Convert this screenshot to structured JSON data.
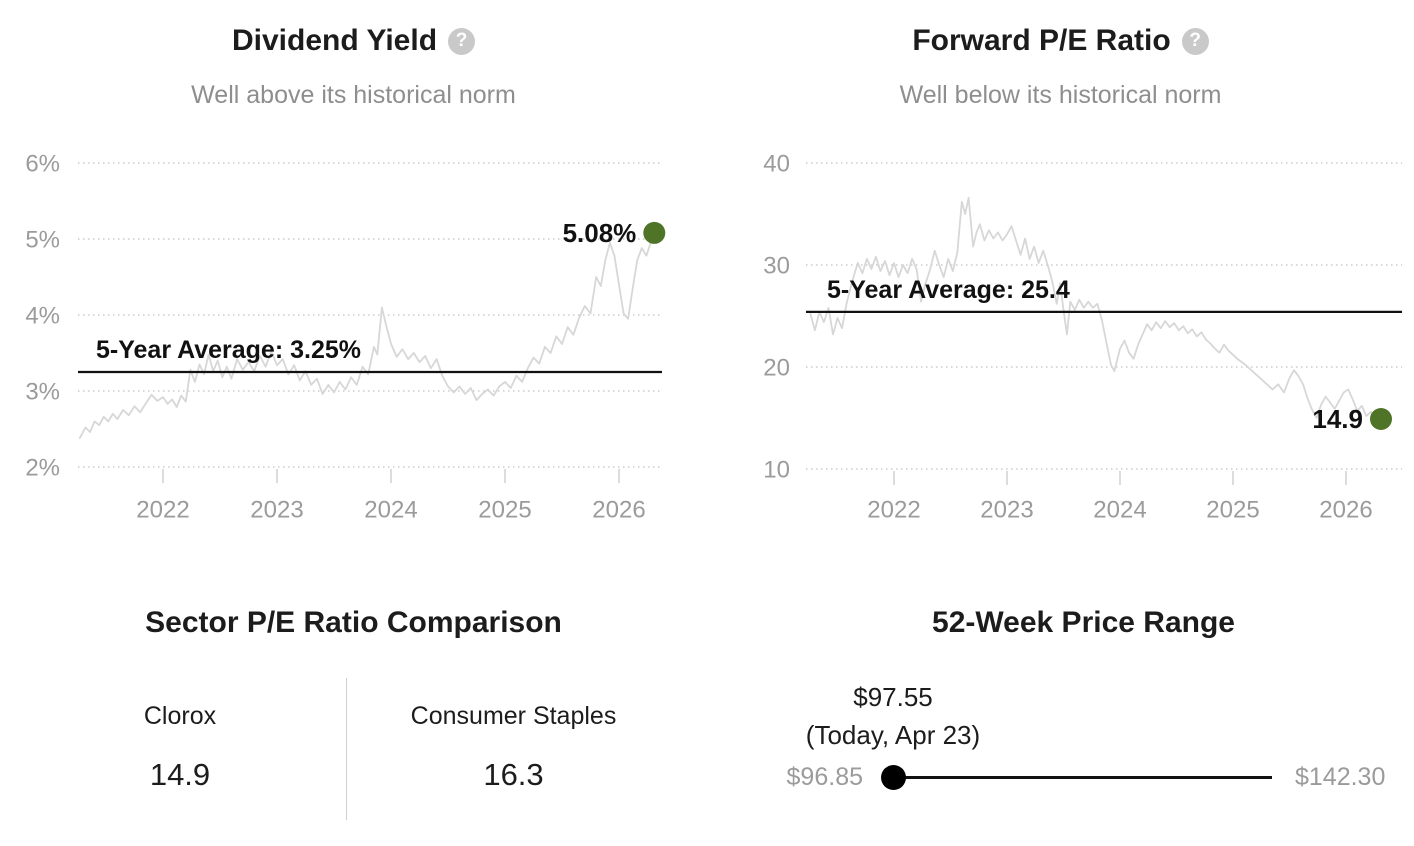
{
  "colors": {
    "accent_green": "#4f7428",
    "line_gray": "#d7d7d7",
    "grid_gray": "#cccccc",
    "text_gray": "#9b9b9b"
  },
  "panels": {
    "dividend_yield": {
      "title": "Dividend Yield",
      "subtitle": "Well above its historical norm",
      "help_icon": "?"
    },
    "forward_pe": {
      "title": "Forward P/E Ratio",
      "subtitle": "Well below its historical norm",
      "help_icon": "?"
    },
    "sector_pe": {
      "title": "Sector P/E Ratio Comparison",
      "columns": [
        {
          "label": "Clorox",
          "value": "14.9"
        },
        {
          "label": "Consumer Staples",
          "value": "16.3"
        }
      ]
    },
    "price_range": {
      "title": "52-Week Price Range",
      "current_price": "$97.55",
      "current_label": "(Today, Apr 23)",
      "low_label": "$96.85",
      "high_label": "$142.30",
      "low_value": 96.85,
      "high_value": 142.3,
      "current_value": 97.55
    }
  },
  "chart_data": [
    {
      "id": "dividend_yield",
      "type": "line",
      "title": "Dividend Yield",
      "subtitle": "Well above its historical norm",
      "ylim": [
        2,
        6
      ],
      "xlim": [
        2021.25,
        2026.35
      ],
      "grid": "dotted-horizontal",
      "y_ticks": [
        {
          "value": 6,
          "label": "6%"
        },
        {
          "value": 5,
          "label": "5%"
        },
        {
          "value": 4,
          "label": "4%"
        },
        {
          "value": 3,
          "label": "3%"
        },
        {
          "value": 2,
          "label": "2%"
        }
      ],
      "x_ticks": [
        {
          "value": 2022,
          "label": "2022"
        },
        {
          "value": 2023,
          "label": "2023"
        },
        {
          "value": 2024,
          "label": "2024"
        },
        {
          "value": 2025,
          "label": "2025"
        },
        {
          "value": 2026,
          "label": "2026"
        }
      ],
      "average": 3.25,
      "average_label": "5-Year Average: 3.25%",
      "last_value": 5.08,
      "last_label": "5.08%",
      "line_color": "#d7d7d7",
      "dot_color": "#4f7428",
      "series": [
        [
          2021.27,
          2.38
        ],
        [
          2021.32,
          2.52
        ],
        [
          2021.36,
          2.46
        ],
        [
          2021.4,
          2.6
        ],
        [
          2021.44,
          2.55
        ],
        [
          2021.48,
          2.66
        ],
        [
          2021.52,
          2.6
        ],
        [
          2021.56,
          2.7
        ],
        [
          2021.6,
          2.63
        ],
        [
          2021.65,
          2.75
        ],
        [
          2021.7,
          2.68
        ],
        [
          2021.75,
          2.8
        ],
        [
          2021.8,
          2.72
        ],
        [
          2021.85,
          2.84
        ],
        [
          2021.9,
          2.95
        ],
        [
          2021.95,
          2.87
        ],
        [
          2022.0,
          2.92
        ],
        [
          2022.04,
          2.83
        ],
        [
          2022.08,
          2.89
        ],
        [
          2022.12,
          2.79
        ],
        [
          2022.16,
          2.94
        ],
        [
          2022.2,
          2.86
        ],
        [
          2022.24,
          3.28
        ],
        [
          2022.28,
          3.12
        ],
        [
          2022.32,
          3.35
        ],
        [
          2022.36,
          3.22
        ],
        [
          2022.4,
          3.48
        ],
        [
          2022.44,
          3.26
        ],
        [
          2022.48,
          3.4
        ],
        [
          2022.52,
          3.18
        ],
        [
          2022.56,
          3.32
        ],
        [
          2022.6,
          3.16
        ],
        [
          2022.65,
          3.42
        ],
        [
          2022.7,
          3.28
        ],
        [
          2022.75,
          3.38
        ],
        [
          2022.8,
          3.26
        ],
        [
          2022.85,
          3.46
        ],
        [
          2022.9,
          3.32
        ],
        [
          2022.95,
          3.52
        ],
        [
          2023.0,
          3.34
        ],
        [
          2023.05,
          3.42
        ],
        [
          2023.1,
          3.22
        ],
        [
          2023.15,
          3.34
        ],
        [
          2023.2,
          3.14
        ],
        [
          2023.25,
          3.26
        ],
        [
          2023.3,
          3.08
        ],
        [
          2023.35,
          3.16
        ],
        [
          2023.4,
          2.96
        ],
        [
          2023.45,
          3.08
        ],
        [
          2023.5,
          2.98
        ],
        [
          2023.55,
          3.12
        ],
        [
          2023.6,
          3.02
        ],
        [
          2023.65,
          3.18
        ],
        [
          2023.7,
          3.08
        ],
        [
          2023.75,
          3.32
        ],
        [
          2023.8,
          3.22
        ],
        [
          2023.85,
          3.58
        ],
        [
          2023.88,
          3.48
        ],
        [
          2023.92,
          4.1
        ],
        [
          2023.96,
          3.85
        ],
        [
          2024.0,
          3.62
        ],
        [
          2024.05,
          3.45
        ],
        [
          2024.1,
          3.55
        ],
        [
          2024.15,
          3.42
        ],
        [
          2024.2,
          3.5
        ],
        [
          2024.25,
          3.38
        ],
        [
          2024.3,
          3.46
        ],
        [
          2024.35,
          3.3
        ],
        [
          2024.4,
          3.42
        ],
        [
          2024.45,
          3.2
        ],
        [
          2024.5,
          3.06
        ],
        [
          2024.55,
          2.98
        ],
        [
          2024.6,
          3.06
        ],
        [
          2024.65,
          2.96
        ],
        [
          2024.7,
          3.04
        ],
        [
          2024.75,
          2.88
        ],
        [
          2024.8,
          2.96
        ],
        [
          2024.85,
          3.02
        ],
        [
          2024.9,
          2.94
        ],
        [
          2024.95,
          3.06
        ],
        [
          2025.0,
          3.12
        ],
        [
          2025.05,
          3.04
        ],
        [
          2025.1,
          3.2
        ],
        [
          2025.15,
          3.12
        ],
        [
          2025.2,
          3.3
        ],
        [
          2025.25,
          3.44
        ],
        [
          2025.3,
          3.36
        ],
        [
          2025.35,
          3.58
        ],
        [
          2025.4,
          3.5
        ],
        [
          2025.45,
          3.72
        ],
        [
          2025.5,
          3.62
        ],
        [
          2025.55,
          3.84
        ],
        [
          2025.6,
          3.74
        ],
        [
          2025.65,
          3.96
        ],
        [
          2025.7,
          4.12
        ],
        [
          2025.75,
          4.02
        ],
        [
          2025.8,
          4.5
        ],
        [
          2025.84,
          4.38
        ],
        [
          2025.88,
          4.72
        ],
        [
          2025.92,
          4.95
        ],
        [
          2025.96,
          4.78
        ],
        [
          2026.0,
          4.4
        ],
        [
          2026.04,
          4.02
        ],
        [
          2026.08,
          3.95
        ],
        [
          2026.12,
          4.35
        ],
        [
          2026.16,
          4.72
        ],
        [
          2026.2,
          4.88
        ],
        [
          2026.24,
          4.78
        ],
        [
          2026.28,
          4.96
        ],
        [
          2026.31,
          5.08
        ]
      ]
    },
    {
      "id": "forward_pe",
      "type": "line",
      "title": "Forward P/E Ratio",
      "subtitle": "Well below its historical norm",
      "ylim": [
        10,
        40
      ],
      "xlim": [
        2021.25,
        2026.35
      ],
      "grid": "dotted-horizontal",
      "y_ticks": [
        {
          "value": 40,
          "label": "40"
        },
        {
          "value": 30,
          "label": "30"
        },
        {
          "value": 20,
          "label": "20"
        },
        {
          "value": 10,
          "label": "10"
        }
      ],
      "x_ticks": [
        {
          "value": 2022,
          "label": "2022"
        },
        {
          "value": 2023,
          "label": "2023"
        },
        {
          "value": 2024,
          "label": "2024"
        },
        {
          "value": 2025,
          "label": "2025"
        },
        {
          "value": 2026,
          "label": "2026"
        }
      ],
      "average": 25.4,
      "average_label": "5-Year Average: 25.4",
      "last_value": 14.9,
      "last_label": "14.9",
      "line_color": "#d7d7d7",
      "dot_color": "#4f7428",
      "series": [
        [
          2021.26,
          25.2
        ],
        [
          2021.3,
          23.6
        ],
        [
          2021.34,
          25.4
        ],
        [
          2021.38,
          24.4
        ],
        [
          2021.42,
          25.8
        ],
        [
          2021.46,
          23.2
        ],
        [
          2021.5,
          24.8
        ],
        [
          2021.54,
          23.8
        ],
        [
          2021.58,
          26.2
        ],
        [
          2021.63,
          28.4
        ],
        [
          2021.68,
          30.2
        ],
        [
          2021.72,
          29.2
        ],
        [
          2021.76,
          30.6
        ],
        [
          2021.8,
          29.6
        ],
        [
          2021.84,
          30.8
        ],
        [
          2021.88,
          29.4
        ],
        [
          2021.92,
          30.4
        ],
        [
          2021.96,
          29.0
        ],
        [
          2022.0,
          30.2
        ],
        [
          2022.04,
          28.8
        ],
        [
          2022.08,
          30.0
        ],
        [
          2022.12,
          29.2
        ],
        [
          2022.16,
          30.6
        ],
        [
          2022.2,
          29.6
        ],
        [
          2022.24,
          26.4
        ],
        [
          2022.28,
          28.2
        ],
        [
          2022.32,
          29.6
        ],
        [
          2022.36,
          31.4
        ],
        [
          2022.4,
          30.0
        ],
        [
          2022.44,
          28.8
        ],
        [
          2022.48,
          30.6
        ],
        [
          2022.52,
          29.4
        ],
        [
          2022.56,
          31.2
        ],
        [
          2022.6,
          36.2
        ],
        [
          2022.63,
          35.0
        ],
        [
          2022.66,
          36.6
        ],
        [
          2022.7,
          31.8
        ],
        [
          2022.73,
          33.2
        ],
        [
          2022.76,
          34.0
        ],
        [
          2022.8,
          32.4
        ],
        [
          2022.84,
          33.4
        ],
        [
          2022.88,
          32.6
        ],
        [
          2022.92,
          33.2
        ],
        [
          2022.96,
          32.4
        ],
        [
          2023.0,
          33.0
        ],
        [
          2023.04,
          33.8
        ],
        [
          2023.08,
          32.4
        ],
        [
          2023.12,
          31.0
        ],
        [
          2023.16,
          32.6
        ],
        [
          2023.2,
          30.6
        ],
        [
          2023.24,
          31.8
        ],
        [
          2023.28,
          30.2
        ],
        [
          2023.32,
          31.4
        ],
        [
          2023.36,
          30.0
        ],
        [
          2023.4,
          28.4
        ],
        [
          2023.44,
          26.2
        ],
        [
          2023.47,
          28.2
        ],
        [
          2023.5,
          25.6
        ],
        [
          2023.53,
          23.2
        ],
        [
          2023.56,
          26.4
        ],
        [
          2023.6,
          25.6
        ],
        [
          2023.64,
          26.6
        ],
        [
          2023.68,
          25.8
        ],
        [
          2023.72,
          26.4
        ],
        [
          2023.76,
          25.8
        ],
        [
          2023.8,
          26.2
        ],
        [
          2023.84,
          24.6
        ],
        [
          2023.88,
          22.4
        ],
        [
          2023.92,
          20.2
        ],
        [
          2023.95,
          19.6
        ],
        [
          2024.0,
          21.8
        ],
        [
          2024.04,
          22.6
        ],
        [
          2024.08,
          21.4
        ],
        [
          2024.12,
          20.8
        ],
        [
          2024.16,
          22.2
        ],
        [
          2024.2,
          23.2
        ],
        [
          2024.24,
          24.2
        ],
        [
          2024.28,
          23.6
        ],
        [
          2024.32,
          24.4
        ],
        [
          2024.36,
          23.8
        ],
        [
          2024.4,
          24.5
        ],
        [
          2024.44,
          23.9
        ],
        [
          2024.48,
          24.3
        ],
        [
          2024.52,
          23.6
        ],
        [
          2024.56,
          24.0
        ],
        [
          2024.6,
          23.3
        ],
        [
          2024.64,
          23.7
        ],
        [
          2024.68,
          23.0
        ],
        [
          2024.72,
          23.4
        ],
        [
          2024.76,
          22.7
        ],
        [
          2024.8,
          22.3
        ],
        [
          2024.84,
          21.8
        ],
        [
          2024.88,
          21.4
        ],
        [
          2024.92,
          22.2
        ],
        [
          2024.96,
          21.6
        ],
        [
          2025.0,
          21.2
        ],
        [
          2025.05,
          20.7
        ],
        [
          2025.1,
          20.3
        ],
        [
          2025.15,
          19.8
        ],
        [
          2025.2,
          19.3
        ],
        [
          2025.25,
          18.8
        ],
        [
          2025.3,
          18.3
        ],
        [
          2025.35,
          17.8
        ],
        [
          2025.4,
          18.3
        ],
        [
          2025.45,
          17.5
        ],
        [
          2025.5,
          18.9
        ],
        [
          2025.54,
          19.7
        ],
        [
          2025.58,
          19.1
        ],
        [
          2025.62,
          18.3
        ],
        [
          2025.66,
          16.9
        ],
        [
          2025.7,
          15.8
        ],
        [
          2025.74,
          15.0
        ],
        [
          2025.78,
          16.3
        ],
        [
          2025.82,
          17.1
        ],
        [
          2025.86,
          16.5
        ],
        [
          2025.9,
          15.9
        ],
        [
          2025.94,
          16.7
        ],
        [
          2025.98,
          17.5
        ],
        [
          2026.02,
          17.8
        ],
        [
          2026.06,
          16.8
        ],
        [
          2026.1,
          15.7
        ],
        [
          2026.14,
          16.2
        ],
        [
          2026.18,
          15.2
        ],
        [
          2026.22,
          15.6
        ],
        [
          2026.26,
          15.1
        ],
        [
          2026.31,
          14.9
        ]
      ]
    }
  ]
}
